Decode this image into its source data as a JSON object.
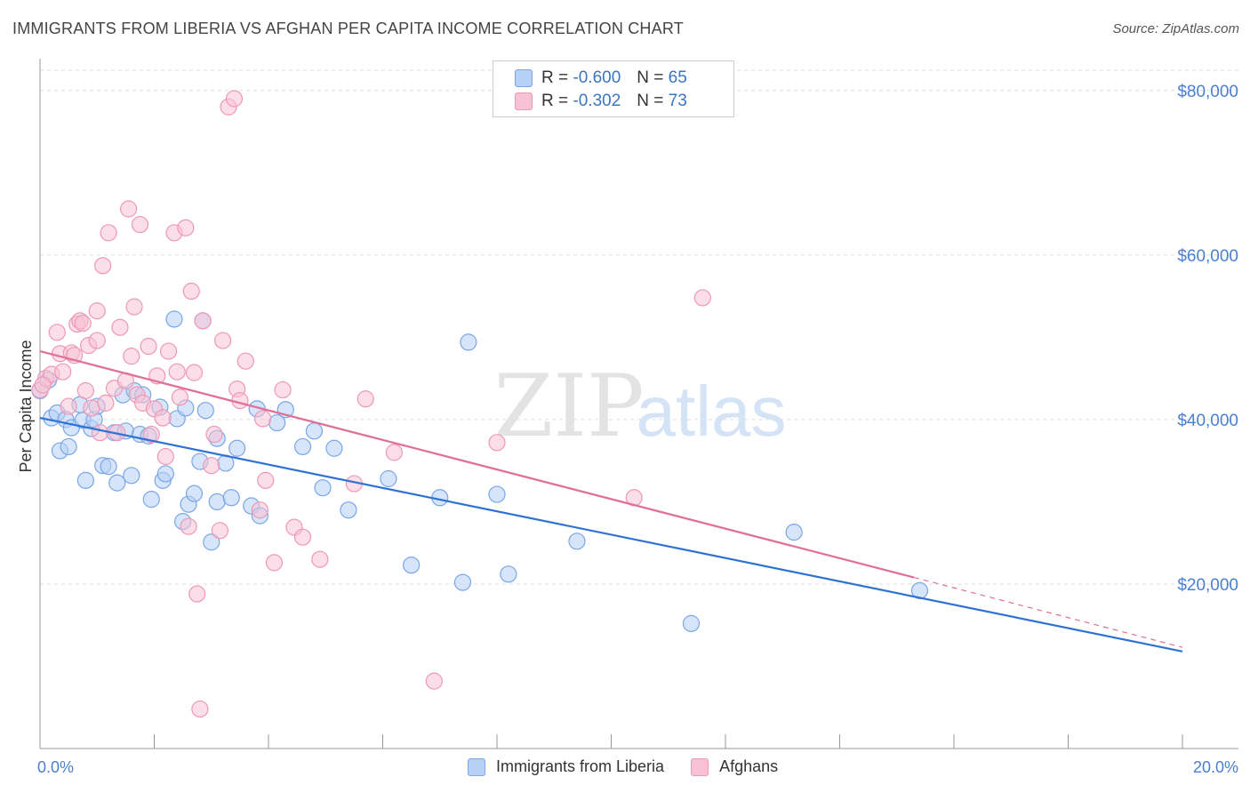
{
  "header": {
    "title": "IMMIGRANTS FROM LIBERIA VS AFGHAN PER CAPITA INCOME CORRELATION CHART",
    "source": "Source: ZipAtlas.com"
  },
  "legend": {
    "rows": [
      {
        "r_label": "R =",
        "r_value": "-0.600",
        "n_label": "N =",
        "n_value": "65"
      },
      {
        "r_label": "R =",
        "r_value": "-0.302",
        "n_label": "N =",
        "n_value": "73"
      }
    ]
  },
  "bottom_legend": [
    "Immigrants from Liberia",
    "Afghans"
  ],
  "colors": {
    "liberia_fill": "#b7d0f5",
    "liberia_stroke": "#7aa6e6",
    "liberia_line": "#2f72d4",
    "afghan_fill": "#f7c2d4",
    "afghan_stroke": "#ee98b6",
    "afghan_line": "#e0709a",
    "tick_text": "#4a7fd0",
    "grid": "#dddddd"
  },
  "chart_data": {
    "type": "scatter",
    "xlabel": "",
    "ylabel": "Per Capita Income",
    "xlim": [
      0,
      20
    ],
    "ylim": [
      0,
      83000
    ],
    "x_tick_labels": [
      "0.0%",
      "20.0%"
    ],
    "y_ticks": [
      20000,
      40000,
      60000,
      80000
    ],
    "y_tick_labels": [
      "$20,000",
      "$40,000",
      "$60,000",
      "$80,000"
    ],
    "grid": true,
    "legend_position": "top-center",
    "series": [
      {
        "name": "Immigrants from Liberia",
        "trend": {
          "x0": 0.0,
          "y0": 40200,
          "x1": 20.0,
          "y1": 11800
        },
        "points": [
          [
            0.0,
            43500
          ],
          [
            0.2,
            40200
          ],
          [
            0.3,
            40800
          ],
          [
            0.35,
            36200
          ],
          [
            0.45,
            40000
          ],
          [
            0.5,
            36700
          ],
          [
            0.55,
            39000
          ],
          [
            0.7,
            41800
          ],
          [
            0.75,
            39900
          ],
          [
            0.8,
            32600
          ],
          [
            0.9,
            38900
          ],
          [
            0.95,
            40000
          ],
          [
            1.0,
            41600
          ],
          [
            1.1,
            34400
          ],
          [
            1.2,
            34300
          ],
          [
            1.3,
            38400
          ],
          [
            1.35,
            32300
          ],
          [
            1.45,
            43000
          ],
          [
            1.5,
            38600
          ],
          [
            1.6,
            33200
          ],
          [
            1.65,
            43500
          ],
          [
            1.75,
            38200
          ],
          [
            1.8,
            43000
          ],
          [
            1.9,
            38000
          ],
          [
            1.95,
            30300
          ],
          [
            2.1,
            41500
          ],
          [
            2.15,
            32600
          ],
          [
            2.2,
            33400
          ],
          [
            2.35,
            52200
          ],
          [
            2.4,
            40100
          ],
          [
            2.5,
            27600
          ],
          [
            2.55,
            41400
          ],
          [
            2.6,
            29700
          ],
          [
            2.7,
            31000
          ],
          [
            2.8,
            34900
          ],
          [
            2.85,
            52000
          ],
          [
            2.9,
            41100
          ],
          [
            3.0,
            25100
          ],
          [
            3.1,
            37700
          ],
          [
            3.1,
            30000
          ],
          [
            3.25,
            34700
          ],
          [
            3.35,
            30500
          ],
          [
            3.45,
            36500
          ],
          [
            3.7,
            29500
          ],
          [
            3.8,
            41300
          ],
          [
            3.85,
            28300
          ],
          [
            4.15,
            39600
          ],
          [
            4.3,
            41200
          ],
          [
            4.6,
            36700
          ],
          [
            4.8,
            38600
          ],
          [
            4.95,
            31700
          ],
          [
            5.15,
            36500
          ],
          [
            5.4,
            29000
          ],
          [
            6.1,
            32800
          ],
          [
            6.5,
            22300
          ],
          [
            7.0,
            30500
          ],
          [
            7.4,
            20200
          ],
          [
            7.5,
            49400
          ],
          [
            8.0,
            30900
          ],
          [
            8.2,
            21200
          ],
          [
            9.4,
            25200
          ],
          [
            11.4,
            15200
          ],
          [
            13.2,
            26300
          ],
          [
            15.4,
            19200
          ],
          [
            0.15,
            44800
          ]
        ]
      },
      {
        "name": "Afghans",
        "trend": {
          "x0": 0.0,
          "y0": 48300,
          "x1": 15.3,
          "y1": 20800
        },
        "trend_dashed": {
          "x0": 15.3,
          "y0": 20800,
          "x1": 20.0,
          "y1": 12300
        },
        "points": [
          [
            0.0,
            43600
          ],
          [
            0.1,
            45000
          ],
          [
            0.2,
            45500
          ],
          [
            0.3,
            50600
          ],
          [
            0.35,
            48000
          ],
          [
            0.4,
            45800
          ],
          [
            0.5,
            41600
          ],
          [
            0.55,
            48100
          ],
          [
            0.6,
            47800
          ],
          [
            0.65,
            51600
          ],
          [
            0.7,
            52000
          ],
          [
            0.75,
            51700
          ],
          [
            0.8,
            43500
          ],
          [
            0.85,
            49000
          ],
          [
            0.9,
            41400
          ],
          [
            1.0,
            49600
          ],
          [
            1.0,
            53200
          ],
          [
            1.05,
            38400
          ],
          [
            1.1,
            58700
          ],
          [
            1.15,
            42000
          ],
          [
            1.2,
            62700
          ],
          [
            1.3,
            43800
          ],
          [
            1.35,
            38400
          ],
          [
            1.4,
            51200
          ],
          [
            1.5,
            44700
          ],
          [
            1.55,
            65600
          ],
          [
            1.6,
            47700
          ],
          [
            1.65,
            53700
          ],
          [
            1.7,
            43000
          ],
          [
            1.75,
            63700
          ],
          [
            1.8,
            42000
          ],
          [
            1.9,
            48900
          ],
          [
            1.95,
            38200
          ],
          [
            2.0,
            41300
          ],
          [
            2.05,
            45300
          ],
          [
            2.15,
            40200
          ],
          [
            2.2,
            35500
          ],
          [
            2.25,
            48300
          ],
          [
            2.35,
            62700
          ],
          [
            2.4,
            45800
          ],
          [
            2.45,
            42700
          ],
          [
            2.55,
            63300
          ],
          [
            2.6,
            27000
          ],
          [
            2.65,
            55600
          ],
          [
            2.7,
            45700
          ],
          [
            2.75,
            18800
          ],
          [
            2.8,
            4800
          ],
          [
            2.85,
            52000
          ],
          [
            3.0,
            34400
          ],
          [
            3.05,
            38200
          ],
          [
            3.15,
            26500
          ],
          [
            3.2,
            49600
          ],
          [
            3.3,
            78000
          ],
          [
            3.4,
            79000
          ],
          [
            3.45,
            43700
          ],
          [
            3.5,
            42300
          ],
          [
            3.6,
            47100
          ],
          [
            3.85,
            29000
          ],
          [
            3.9,
            40100
          ],
          [
            3.95,
            32600
          ],
          [
            4.1,
            22600
          ],
          [
            4.25,
            43600
          ],
          [
            4.45,
            26900
          ],
          [
            4.6,
            25700
          ],
          [
            4.9,
            23000
          ],
          [
            5.5,
            32200
          ],
          [
            5.7,
            42500
          ],
          [
            6.2,
            36000
          ],
          [
            6.9,
            8200
          ],
          [
            8.0,
            37200
          ],
          [
            10.4,
            30500
          ],
          [
            11.6,
            54800
          ],
          [
            0.05,
            44200
          ]
        ]
      }
    ]
  }
}
